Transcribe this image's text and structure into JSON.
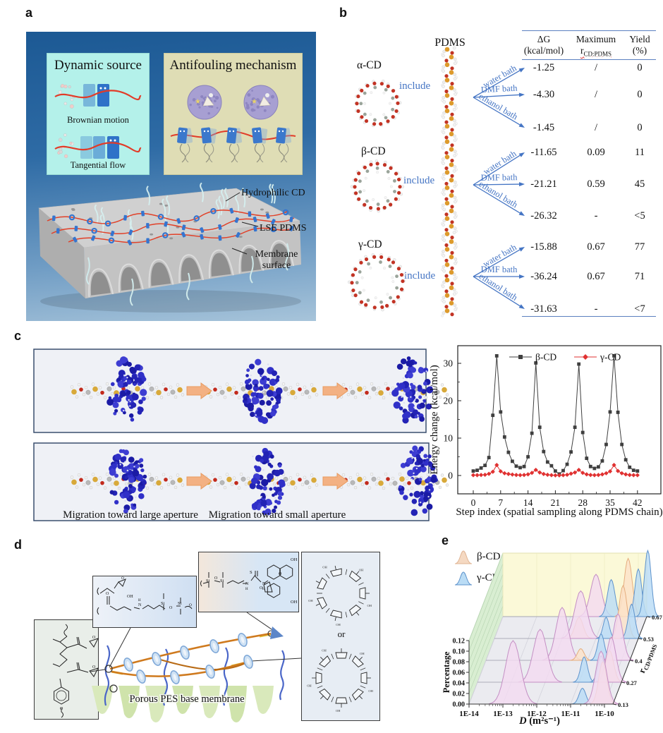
{
  "panel_labels": {
    "a": "a",
    "b": "b",
    "c": "c",
    "d": "d",
    "e": "e"
  },
  "panel_a": {
    "dynamic_source_title": "Dynamic source",
    "brownian_label": "Brownian motion",
    "tangential_label": "Tangential flow",
    "antifouling_title": "Antifouling mechanism",
    "hydrophilic_cd_label": "Hydrophilic CD",
    "lse_pdms_label": "LSE PDMS",
    "membrane_surface_label": "Membrane surface"
  },
  "panel_b": {
    "pdms_label": "PDMS",
    "header": {
      "dg_line1": "ΔG",
      "dg_line2": "(kcal/mol)",
      "max_line1": "Maximum",
      "max_r": "r",
      "max_r_sub": "CD:PDMS",
      "yield_line1": "Yield",
      "yield_line2": "(%)"
    },
    "groups": [
      {
        "cd_label": "α-CD",
        "include_label": "include",
        "rows": [
          {
            "bath": "water bath",
            "dg": "-1.25",
            "max_r": "/",
            "yield": "0"
          },
          {
            "bath": "DMF bath",
            "dg": "-4.30",
            "max_r": "/",
            "yield": "0"
          },
          {
            "bath": "ethanol bath",
            "dg": "-1.45",
            "max_r": "/",
            "yield": "0"
          }
        ]
      },
      {
        "cd_label": "β-CD",
        "include_label": "include",
        "rows": [
          {
            "bath": "water bath",
            "dg": "-11.65",
            "max_r": "0.09",
            "yield": "11"
          },
          {
            "bath": "DMF bath",
            "dg": "-21.21",
            "max_r": "0.59",
            "yield": "45"
          },
          {
            "bath": "ethanol bath",
            "dg": "-26.32",
            "max_r": "-",
            "yield": "<5"
          }
        ]
      },
      {
        "cd_label": "γ-CD",
        "include_label": "include",
        "rows": [
          {
            "bath": "water bath",
            "dg": "-15.88",
            "max_r": "0.67",
            "yield": "77"
          },
          {
            "bath": "DMF bath",
            "dg": "-36.24",
            "max_r": "0.67",
            "yield": "71"
          },
          {
            "bath": "ethanol bath",
            "dg": "-31.63",
            "max_r": "-",
            "yield": "<7"
          }
        ]
      }
    ]
  },
  "panel_c": {
    "caption_large": "Migration toward large aperture",
    "caption_small": "Migration toward small aperture"
  },
  "panel_d": {
    "or_label": "or",
    "membrane_label": "Porous PES base membrane"
  },
  "panel_e": {
    "legend": [
      {
        "label": "β-CD/PDMS PPR"
      },
      {
        "label": "γ-CD/PDMS PPR"
      }
    ],
    "xlabel_d": "D",
    "xlabel_units": " (m²s⁻¹)"
  },
  "colors": {
    "accent_blue": "#4575c4",
    "table_rule": "#5b7fc0",
    "beta_series": "#3f3f3f",
    "gamma_series": "#e03131",
    "arrow_orange": "#f3b183",
    "pes_green": "#cfe3ab",
    "pdms_strand": "#cf7a1e",
    "cd_ring_fill": "#cfe2f4",
    "dynamic_box_bg": "#b4f1ea",
    "antifouling_box_bg": "#dfddb5",
    "panel_a_bg_top": "#1c5994",
    "panel_a_bg_bottom": "#a7c4da",
    "ridge_pink": "#f3daf0",
    "ridge_blue": "#badcf5",
    "ridge_orange": "#fbe2c8"
  },
  "chart_data": [
    {
      "type": "line",
      "title": "",
      "xlabel": "Step index (spatial sampling along PDMS chain)",
      "ylabel": "Energy change (kcal/mol)",
      "x_ticks": [
        0,
        7,
        14,
        21,
        28,
        35,
        42
      ],
      "y_ticks": [
        0,
        10,
        20,
        30
      ],
      "xlim": [
        -4,
        48
      ],
      "ylim": [
        -5,
        34
      ],
      "legend_position": "top-center",
      "x_values": [
        0,
        1,
        2,
        3,
        4,
        5,
        6,
        7,
        8,
        9,
        10,
        11,
        12,
        13,
        14,
        15,
        16,
        17,
        18,
        19,
        20,
        21,
        22,
        23,
        24,
        25,
        26,
        27,
        28,
        29,
        30,
        31,
        32,
        33,
        34,
        35,
        36,
        37,
        38,
        39,
        40,
        41,
        42
      ],
      "series": [
        {
          "name": "β-CD",
          "color": "#3f3f3f",
          "marker": "square",
          "values": [
            1.2,
            1.4,
            2.0,
            2.7,
            4.8,
            16.1,
            32.0,
            17.0,
            10.3,
            6.2,
            3.8,
            2.5,
            2.1,
            2.4,
            5.0,
            11.3,
            30.1,
            12.9,
            6.4,
            3.6,
            2.6,
            1.2,
            0.4,
            1.3,
            3.0,
            6.3,
            12.9,
            29.8,
            11.5,
            4.6,
            2.4,
            1.9,
            2.3,
            3.9,
            8.3,
            17.0,
            32.0,
            16.9,
            8.3,
            4.2,
            2.2,
            1.4,
            1.2
          ]
        },
        {
          "name": "γ-CD",
          "color": "#e03131",
          "marker": "diamond",
          "values": [
            0.1,
            0.1,
            0.15,
            0.2,
            0.45,
            1.0,
            2.8,
            1.1,
            0.6,
            0.4,
            0.25,
            0.15,
            0.1,
            0.15,
            0.3,
            0.7,
            1.5,
            0.8,
            0.4,
            0.2,
            0.1,
            0.05,
            0.05,
            0.1,
            0.2,
            0.5,
            0.8,
            1.5,
            0.7,
            0.3,
            0.15,
            0.1,
            0.15,
            0.3,
            0.6,
            1.1,
            2.8,
            1.2,
            0.6,
            0.3,
            0.15,
            0.1,
            0.1
          ]
        }
      ]
    },
    {
      "type": "ridgeline-3d",
      "xlabel": "D (m²s⁻¹)",
      "ylabel": "Percentage",
      "zlabel": "r_CD/PDMS",
      "zlabel_main": "r",
      "zlabel_sub": "CD/PDMS",
      "x_scale": "log10",
      "x_ticks": [
        "1E-14",
        "1E-13",
        "1E-12",
        "1E-11",
        "1E-10"
      ],
      "y_ticks": [
        "0.00",
        "0.02",
        "0.04",
        "0.06",
        "0.08",
        "0.10",
        "0.12"
      ],
      "legend": [
        "β-CD/PDMS PPR",
        "γ-CD/PDMS PPR"
      ],
      "series_colors": {
        "pink": {
          "fill": "#f3daf0",
          "stroke": "#c48fc4"
        },
        "blue": {
          "fill": "#badcf5",
          "stroke": "#5e93cc"
        },
        "orange": {
          "fill": "#fbe2c8",
          "stroke": "#e5ad7e"
        }
      },
      "rows": [
        {
          "r": "0.13",
          "peaks": [
            {
              "series": "pink",
              "logD": -12.7,
              "h": 0.12,
              "w": 0.22
            },
            {
              "series": "blue",
              "logD": -10.65,
              "h": 0.03,
              "w": 0.1
            },
            {
              "series": "orange",
              "logD": -10.05,
              "h": 0.08,
              "w": 0.12
            },
            {
              "series": "pink",
              "logD": -10.1,
              "h": 0.1,
              "w": 0.16
            }
          ]
        },
        {
          "r": "0.27",
          "peaks": [
            {
              "series": "pink",
              "logD": -12.15,
              "h": 0.1,
              "w": 0.2
            },
            {
              "series": "blue",
              "logD": -10.85,
              "h": 0.048,
              "w": 0.1
            },
            {
              "series": "blue",
              "logD": -10.35,
              "h": 0.05,
              "w": 0.1
            },
            {
              "series": "orange",
              "logD": -10.1,
              "h": 0.06,
              "w": 0.12
            },
            {
              "series": "pink",
              "logD": -10.05,
              "h": 0.085,
              "w": 0.14
            }
          ]
        },
        {
          "r": "0.4",
          "peaks": [
            {
              "series": "pink",
              "logD": -11.75,
              "h": 0.1,
              "w": 0.18
            },
            {
              "series": "orange",
              "logD": -11.2,
              "h": 0.022,
              "w": 0.1
            },
            {
              "series": "blue",
              "logD": -10.6,
              "h": 0.05,
              "w": 0.1
            },
            {
              "series": "pink",
              "logD": -10.1,
              "h": 0.088,
              "w": 0.14
            }
          ]
        },
        {
          "r": "0.53",
          "peaks": [
            {
              "series": "orange",
              "logD": -11.5,
              "h": 0.04,
              "w": 0.12
            },
            {
              "series": "pink",
              "logD": -11.45,
              "h": 0.09,
              "w": 0.18
            },
            {
              "series": "blue",
              "logD": -10.7,
              "h": 0.04,
              "w": 0.09
            },
            {
              "series": "orange",
              "logD": -10.2,
              "h": 0.1,
              "w": 0.12
            },
            {
              "series": "blue",
              "logD": -9.95,
              "h": 0.065,
              "w": 0.1
            }
          ]
        },
        {
          "r": "0.67",
          "peaks": [
            {
              "series": "pink",
              "logD": -11.25,
              "h": 0.08,
              "w": 0.16
            },
            {
              "series": "blue",
              "logD": -10.8,
              "h": 0.07,
              "w": 0.11
            },
            {
              "series": "orange",
              "logD": -10.3,
              "h": 0.11,
              "w": 0.12
            },
            {
              "series": "blue",
              "logD": -10.0,
              "h": 0.09,
              "w": 0.1
            },
            {
              "series": "blue",
              "logD": -9.72,
              "h": 0.125,
              "w": 0.1
            }
          ]
        }
      ]
    }
  ]
}
